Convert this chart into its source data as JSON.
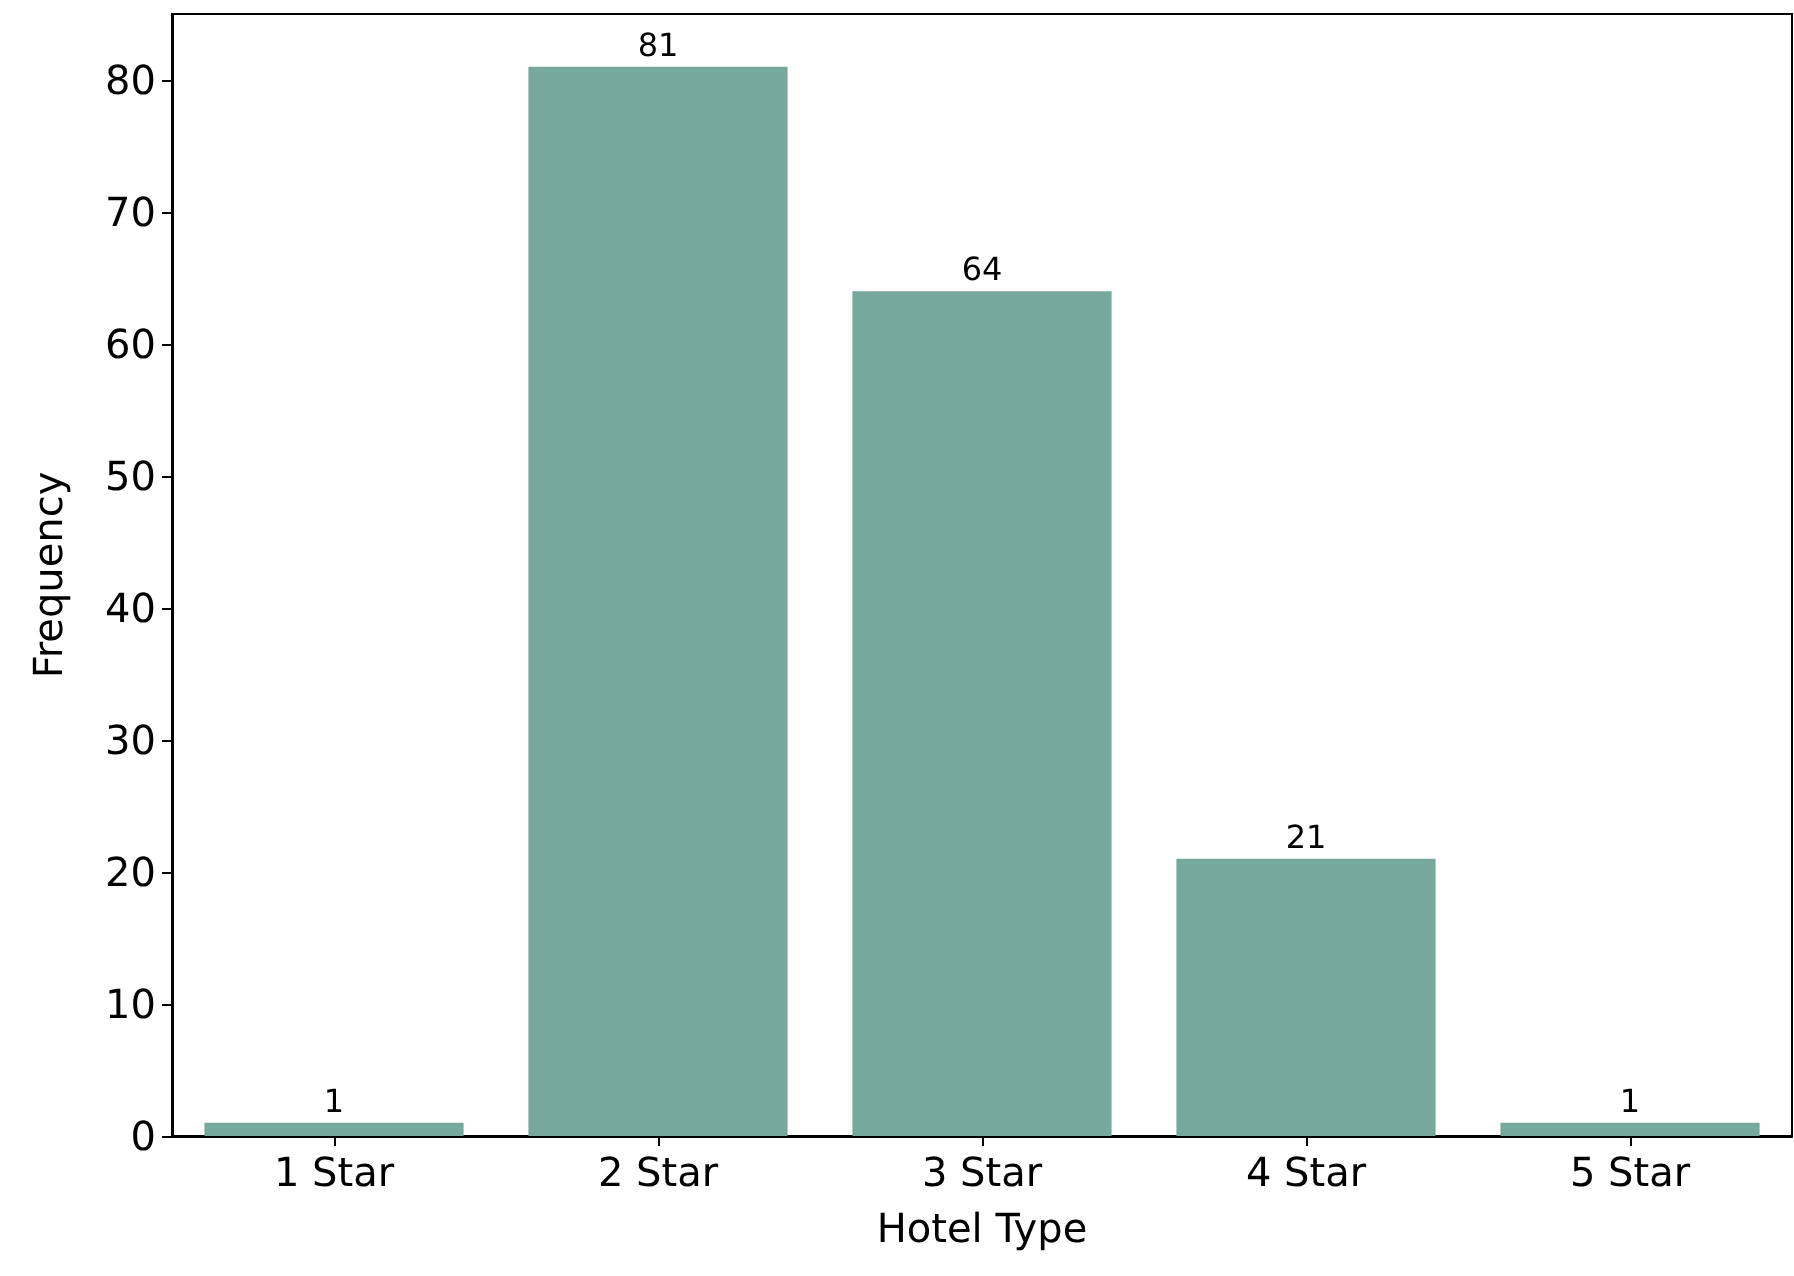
{
  "chart_data": {
    "type": "bar",
    "xlabel": "Hotel Type",
    "ylabel": "Frequency",
    "categories": [
      "1 Star",
      "2 Star",
      "3 Star",
      "4 Star",
      "5 Star"
    ],
    "values": [
      1,
      81,
      64,
      21,
      1
    ],
    "color": "#76a99b",
    "ylim": [
      0,
      85
    ],
    "yticks": [
      0,
      10,
      20,
      30,
      40,
      50,
      60,
      70,
      80
    ],
    "grid": false,
    "data_labels": true
  }
}
